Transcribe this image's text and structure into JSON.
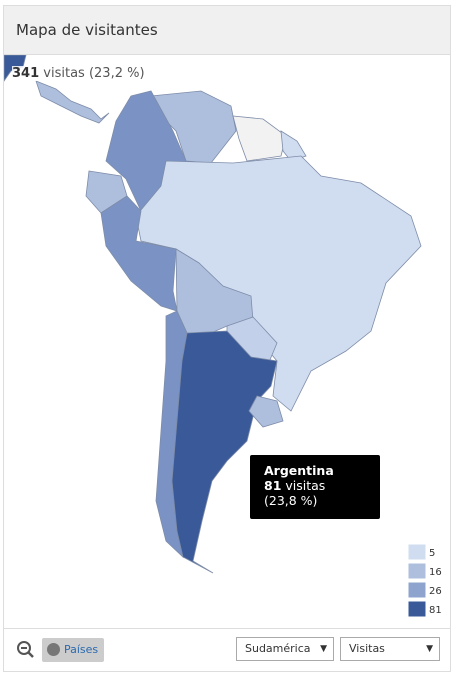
{
  "header": {
    "title": "Mapa de visitantes"
  },
  "summary": {
    "visits": 341,
    "label": "visitas",
    "share": "(23,2 %)"
  },
  "tooltip": {
    "country": "Argentina",
    "visits": 81,
    "label": "visitas",
    "share": "(23,8 %)"
  },
  "legend": {
    "values": [
      5,
      16,
      26,
      81
    ],
    "colors": [
      "#d0dcf0",
      "#aebfde",
      "#8ea4cf",
      "#3a5998"
    ]
  },
  "toolbar": {
    "button": "Países",
    "region": "Sudamérica",
    "metric": "Visitas"
  }
}
